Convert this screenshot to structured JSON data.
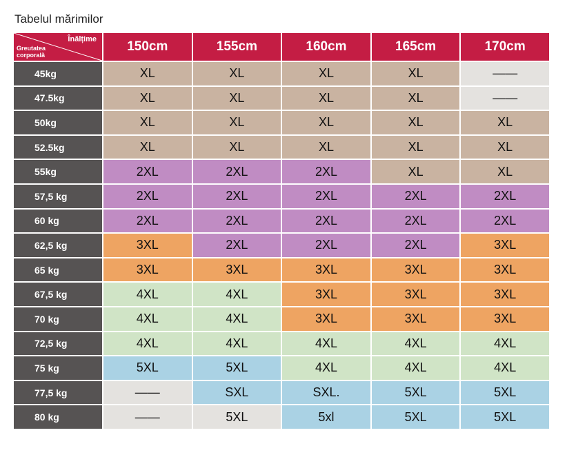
{
  "table": {
    "title": "Tabelul mărimilor",
    "corner_height": "Înălțime",
    "corner_weight": "Greutatea corporală",
    "columns": [
      "150cm",
      "155cm",
      "160cm",
      "165cm",
      "170cm"
    ],
    "rows": [
      {
        "weight": "45kg",
        "cells": [
          {
            "text": "XL",
            "color": "#c9b3a1"
          },
          {
            "text": "XL",
            "color": "#c9b3a1"
          },
          {
            "text": "XL",
            "color": "#c9b3a1"
          },
          {
            "text": "XL",
            "color": "#c9b3a1"
          },
          {
            "text": "——",
            "color": "#e4e2df"
          }
        ]
      },
      {
        "weight": "47.5kg",
        "cells": [
          {
            "text": "XL",
            "color": "#c9b3a1"
          },
          {
            "text": "XL",
            "color": "#c9b3a1"
          },
          {
            "text": "XL",
            "color": "#c9b3a1"
          },
          {
            "text": "XL",
            "color": "#c9b3a1"
          },
          {
            "text": "——",
            "color": "#e4e2df"
          }
        ]
      },
      {
        "weight": "50kg",
        "cells": [
          {
            "text": "XL",
            "color": "#c9b3a1"
          },
          {
            "text": "XL",
            "color": "#c9b3a1"
          },
          {
            "text": "XL",
            "color": "#c9b3a1"
          },
          {
            "text": "XL",
            "color": "#c9b3a1"
          },
          {
            "text": "XL",
            "color": "#c9b3a1"
          }
        ]
      },
      {
        "weight": "52.5kg",
        "cells": [
          {
            "text": "XL",
            "color": "#c9b3a1"
          },
          {
            "text": "XL",
            "color": "#c9b3a1"
          },
          {
            "text": "XL",
            "color": "#c9b3a1"
          },
          {
            "text": "XL",
            "color": "#c9b3a1"
          },
          {
            "text": "XL",
            "color": "#c9b3a1"
          }
        ]
      },
      {
        "weight": "55kg",
        "cells": [
          {
            "text": "2XL",
            "color": "#c08cc3"
          },
          {
            "text": "2XL",
            "color": "#c08cc3"
          },
          {
            "text": "2XL",
            "color": "#c08cc3"
          },
          {
            "text": "XL",
            "color": "#c9b3a1"
          },
          {
            "text": "XL",
            "color": "#c9b3a1"
          }
        ]
      },
      {
        "weight": "57,5 kg",
        "cells": [
          {
            "text": "2XL",
            "color": "#c08cc3"
          },
          {
            "text": "2XL",
            "color": "#c08cc3"
          },
          {
            "text": "2XL",
            "color": "#c08cc3"
          },
          {
            "text": "2XL",
            "color": "#c08cc3"
          },
          {
            "text": "2XL",
            "color": "#c08cc3"
          }
        ]
      },
      {
        "weight": "60 kg",
        "cells": [
          {
            "text": "2XL",
            "color": "#c08cc3"
          },
          {
            "text": "2XL",
            "color": "#c08cc3"
          },
          {
            "text": "2XL",
            "color": "#c08cc3"
          },
          {
            "text": "2XL",
            "color": "#c08cc3"
          },
          {
            "text": "2XL",
            "color": "#c08cc3"
          }
        ]
      },
      {
        "weight": "62,5 kg",
        "cells": [
          {
            "text": "3XL",
            "color": "#eea462"
          },
          {
            "text": "2XL",
            "color": "#c08cc3"
          },
          {
            "text": "2XL",
            "color": "#c08cc3"
          },
          {
            "text": "2XL",
            "color": "#c08cc3"
          },
          {
            "text": "3XL",
            "color": "#eea462"
          }
        ]
      },
      {
        "weight": "65 kg",
        "cells": [
          {
            "text": "3XL",
            "color": "#eea462"
          },
          {
            "text": "3XL",
            "color": "#eea462"
          },
          {
            "text": "3XL",
            "color": "#eea462"
          },
          {
            "text": "3XL",
            "color": "#eea462"
          },
          {
            "text": "3XL",
            "color": "#eea462"
          }
        ]
      },
      {
        "weight": "67,5 kg",
        "cells": [
          {
            "text": "4XL",
            "color": "#d0e4c6"
          },
          {
            "text": "4XL",
            "color": "#d0e4c6"
          },
          {
            "text": "3XL",
            "color": "#eea462"
          },
          {
            "text": "3XL",
            "color": "#eea462"
          },
          {
            "text": "3XL",
            "color": "#eea462"
          }
        ]
      },
      {
        "weight": "70 kg",
        "cells": [
          {
            "text": "4XL",
            "color": "#d0e4c6"
          },
          {
            "text": "4XL",
            "color": "#d0e4c6"
          },
          {
            "text": "3XL",
            "color": "#eea462"
          },
          {
            "text": "3XL",
            "color": "#eea462"
          },
          {
            "text": "3XL",
            "color": "#eea462"
          }
        ]
      },
      {
        "weight": "72,5 kg",
        "cells": [
          {
            "text": "4XL",
            "color": "#d0e4c6"
          },
          {
            "text": "4XL",
            "color": "#d0e4c6"
          },
          {
            "text": "4XL",
            "color": "#d0e4c6"
          },
          {
            "text": "4XL",
            "color": "#d0e4c6"
          },
          {
            "text": "4XL",
            "color": "#d0e4c6"
          }
        ]
      },
      {
        "weight": "75 kg",
        "cells": [
          {
            "text": "5XL",
            "color": "#aad2e4"
          },
          {
            "text": "5XL",
            "color": "#aad2e4"
          },
          {
            "text": "4XL",
            "color": "#d0e4c6"
          },
          {
            "text": "4XL",
            "color": "#d0e4c6"
          },
          {
            "text": "4XL",
            "color": "#d0e4c6"
          }
        ]
      },
      {
        "weight": "77,5 kg",
        "cells": [
          {
            "text": "——",
            "color": "#e4e2df"
          },
          {
            "text": "SXL",
            "color": "#aad2e4"
          },
          {
            "text": "SXL.",
            "color": "#aad2e4"
          },
          {
            "text": "5XL",
            "color": "#aad2e4"
          },
          {
            "text": "5XL",
            "color": "#aad2e4"
          }
        ]
      },
      {
        "weight": "80 kg",
        "cells": [
          {
            "text": "——",
            "color": "#e4e2df"
          },
          {
            "text": "5XL",
            "color": "#e4e2df"
          },
          {
            "text": "5xl",
            "color": "#aad2e4"
          },
          {
            "text": "5XL",
            "color": "#aad2e4"
          },
          {
            "text": "5XL",
            "color": "#aad2e4"
          }
        ]
      }
    ]
  }
}
